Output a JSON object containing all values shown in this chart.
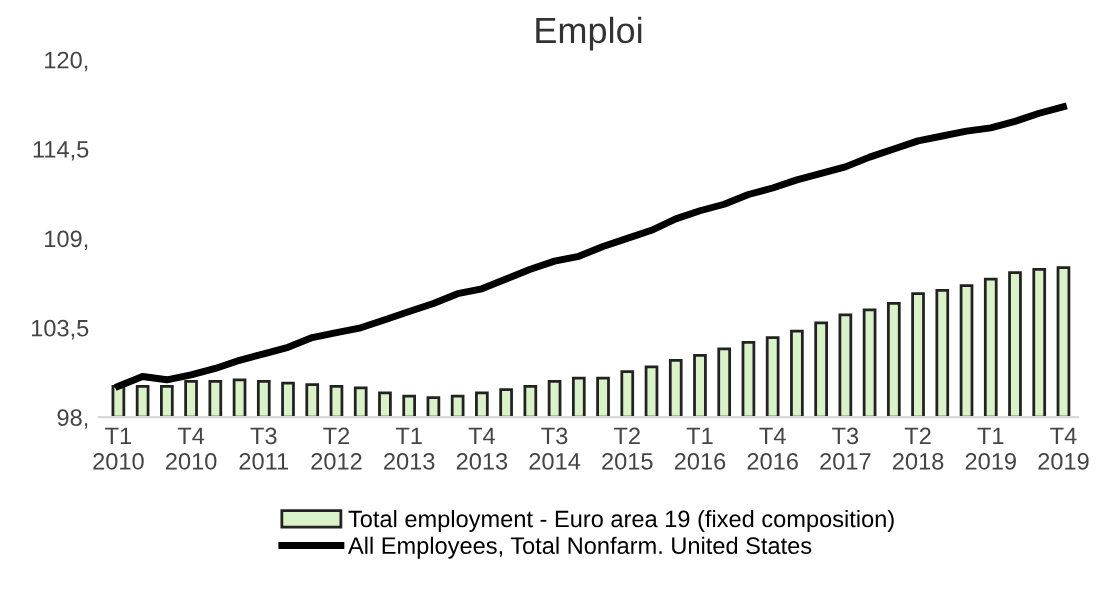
{
  "chart_data": {
    "type": "bar",
    "title": "Emploi",
    "categories": [
      "T1\n2010",
      null,
      null,
      "T4\n2010",
      null,
      null,
      "T3\n2011",
      null,
      null,
      "T2\n2012",
      null,
      null,
      "T1\n2013",
      null,
      null,
      "T4\n2013",
      null,
      null,
      "T3\n2014",
      null,
      null,
      "T2\n2015",
      null,
      null,
      "T1\n2016",
      null,
      null,
      "T4\n2016",
      null,
      null,
      "T3\n2017",
      null,
      null,
      "T2\n2018",
      null,
      null,
      "T1\n2019",
      null,
      null,
      "T4\n2019"
    ],
    "series": [
      {
        "name": "Total employment - Euro area 19 (fixed composition)",
        "color": "#d9f2c8",
        "values": [
          99.9,
          99.9,
          99.9,
          100.2,
          100.2,
          100.3,
          100.2,
          100.1,
          100.0,
          99.9,
          99.8,
          99.5,
          99.3,
          99.2,
          99.3,
          99.5,
          99.7,
          99.9,
          100.2,
          100.4,
          100.4,
          100.8,
          101.1,
          101.5,
          101.8,
          102.2,
          102.6,
          102.9,
          103.3,
          103.8,
          104.3,
          104.6,
          105.0,
          105.6,
          105.8,
          106.1,
          106.5,
          106.9,
          107.1,
          107.2
        ]
      },
      {
        "name": "All Employees, Total Nonfarm. United States",
        "type": "line",
        "color": "#000000",
        "values": [
          99.9,
          100.5,
          100.3,
          100.6,
          101.0,
          101.5,
          101.9,
          102.3,
          102.9,
          103.2,
          103.5,
          104.0,
          104.5,
          105.0,
          105.6,
          105.9,
          106.5,
          107.1,
          107.6,
          107.9,
          108.5,
          109.0,
          109.5,
          110.2,
          110.7,
          111.1,
          111.7,
          112.1,
          112.6,
          113.0,
          113.4,
          114.0,
          114.5,
          115.0,
          115.3,
          115.6,
          115.8,
          116.2,
          116.7,
          117.1
        ]
      }
    ],
    "ylim": [
      98,
      120
    ],
    "yticks": [
      {
        "value": 98,
        "label": "98,"
      },
      {
        "value": 103.5,
        "label": "103,5"
      },
      {
        "value": 109,
        "label": "109,"
      },
      {
        "value": 114.5,
        "label": "114,5"
      },
      {
        "value": 120,
        "label": "120,"
      }
    ],
    "grid": false,
    "legend": "bottom",
    "line_style": "solid",
    "marker": "none"
  }
}
